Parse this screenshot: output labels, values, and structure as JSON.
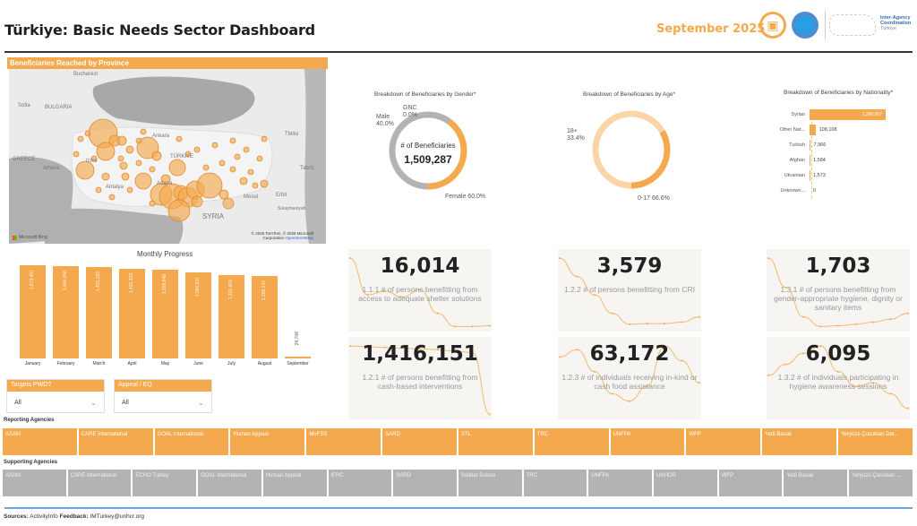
{
  "header": {
    "title": "Türkiye: Basic Needs Sector Dashboard",
    "period": "September 2025",
    "logos": {
      "sector_icon": "box-icon",
      "un_icon": "un-emblem-icon",
      "iac_text": [
        "Inter-Agency",
        "Coordination",
        "Türkiye"
      ]
    }
  },
  "map": {
    "title": "Beneficiaries Reached by Province",
    "labels": [
      "Bucharest",
      "Sofia",
      "BULGARIA",
      "GREECE",
      "Athens",
      "Izmir",
      "Ankara",
      "TÜRKIYE",
      "Antalya",
      "Adana",
      "SYRIA",
      "Mosul",
      "Erbil",
      "Tbilisi",
      "Tabriz",
      "Sulaymaniyah"
    ],
    "credit_line1": "© 2025 TomTom, © 2025 Microsoft",
    "credit_line2": "Corporation",
    "credit_link": "OpenStreetMap",
    "provider": "Microsoft Bing"
  },
  "gender": {
    "title": "Breakdown of Beneficiaries by Gender*",
    "center_label": "# of Beneficiaries",
    "center_value": "1,509,287",
    "segments": [
      {
        "label": "Male",
        "pct": "40.0%",
        "value": 40.0,
        "color": "#f5a94e"
      },
      {
        "label": "GNC",
        "pct": "0.0%",
        "value": 0.0,
        "color": "#f5a94e"
      },
      {
        "label": "Female",
        "pct": "60.0%",
        "value": 60.0,
        "color": "#b3b3b3"
      }
    ]
  },
  "age": {
    "title": "Breakdown of Beneficiaries by Age*",
    "segments": [
      {
        "label": "18+",
        "pct": "33.4%",
        "value": 33.4,
        "color": "#f5a94e"
      },
      {
        "label": "0-17",
        "pct": "66.6%",
        "value": 66.6,
        "color": "#fbd5a8"
      }
    ]
  },
  "nationality": {
    "title": "Breakdown of Beneficiaries by Nationality*",
    "rows": [
      {
        "label": "Syrian",
        "value": 1390057,
        "display": "1,390,057"
      },
      {
        "label": "Other Nat...",
        "value": 108108,
        "display": "108,108"
      },
      {
        "label": "Turkish",
        "value": 7966,
        "display": "7,966"
      },
      {
        "label": "Afghan",
        "value": 1584,
        "display": "1,584"
      },
      {
        "label": "Ukrainian",
        "value": 1573,
        "display": "1,573"
      },
      {
        "label": "Unknown...",
        "value": 0,
        "display": "0"
      }
    ]
  },
  "monthly": {
    "title": "Monthly Progress",
    "months": [
      "January",
      "February",
      "March",
      "April",
      "May",
      "June",
      "July",
      "August",
      "September"
    ],
    "values": [
      1473451,
      1466268,
      1451193,
      1420333,
      1398948,
      1366631,
      1321504,
      1298142,
      24708
    ],
    "displays": [
      "1,473,451",
      "1,466,268",
      "1,451,193",
      "1,420,333",
      "1,398,948",
      "1,366,631",
      "1,321,504",
      "1,298,142",
      "24,708"
    ]
  },
  "slicers": [
    {
      "title": "Targets PWD?",
      "value": "All"
    },
    {
      "title": "Appeal / EQ",
      "value": "All"
    }
  ],
  "kpis": [
    {
      "value": "16,014",
      "desc": "1.1.1 # of persons benefitting from access to adequate shelter solutions",
      "trend": [
        0.95,
        0.45,
        0.5,
        0.42,
        0.52,
        0.2,
        0.02,
        0.02,
        0.03
      ]
    },
    {
      "value": "3,579",
      "desc": "1.2.2 # of persons benefitting from CRI",
      "trend": [
        0.95,
        0.7,
        0.45,
        0.2,
        0.05,
        0.06,
        0.06,
        0.08,
        0.15
      ]
    },
    {
      "value": "1,703",
      "desc": "1.3.1 # of persons benefitting from gender-appropriate hygiene, dignity or sanitary items",
      "trend": [
        0.95,
        0.55,
        0.15,
        0.02,
        0.03,
        0.05,
        0.08,
        0.12,
        0.2
      ]
    },
    {
      "value": "1,416,151",
      "desc": "1.2.1 # of persons benefitting from cash-based interventions",
      "trend": [
        0.95,
        0.94,
        0.93,
        0.92,
        0.91,
        0.9,
        0.88,
        0.86,
        0.02
      ]
    },
    {
      "value": "63,172",
      "desc": "1.2.3 # of individuals receiving in-kind or cash food assistance",
      "trend": [
        0.8,
        0.9,
        0.6,
        0.3,
        0.2,
        0.4,
        0.95,
        0.75,
        0.45
      ]
    },
    {
      "value": "6,095",
      "desc": "1.3.2 # of individuals participating in hygiene awareness sessions",
      "trend": [
        0.55,
        0.7,
        0.85,
        0.95,
        0.6,
        0.4,
        0.45,
        0.3,
        0.1
      ]
    }
  ],
  "reporting_agencies": {
    "label": "Reporting Agencies",
    "items": [
      "ASAM",
      "CARE International",
      "GOAL International",
      "Human Appeal",
      "MoFSS",
      "SARD",
      "STL",
      "TRC",
      "UNFPA",
      "WFP",
      "Yedi Basak",
      "Yeryüzü Çocukları Der..."
    ]
  },
  "supporting_agencies": {
    "label": "Supporting Agencies",
    "items": [
      "ASAM",
      "CARE International",
      "ECHO Turkey",
      "GOAL International",
      "Human Appeal",
      "IFRC",
      "SARD",
      "Solidar Suisse",
      "TRC",
      "UNFPA",
      "UNHCR",
      "WFP",
      "Yedi Basak",
      "Yeryüzü Çocukları ..."
    ]
  },
  "footer": {
    "sources_label": "Sources:",
    "sources_value": "ActivityInfo",
    "feedback_label": "Feedback:",
    "feedback_value": "IMTurkey@unhcr.org"
  },
  "colors": {
    "accent": "#f5a94e",
    "accent_light": "#fbd5a8",
    "neutral": "#b3b3b3",
    "footer_line": "#6aa7d4"
  }
}
